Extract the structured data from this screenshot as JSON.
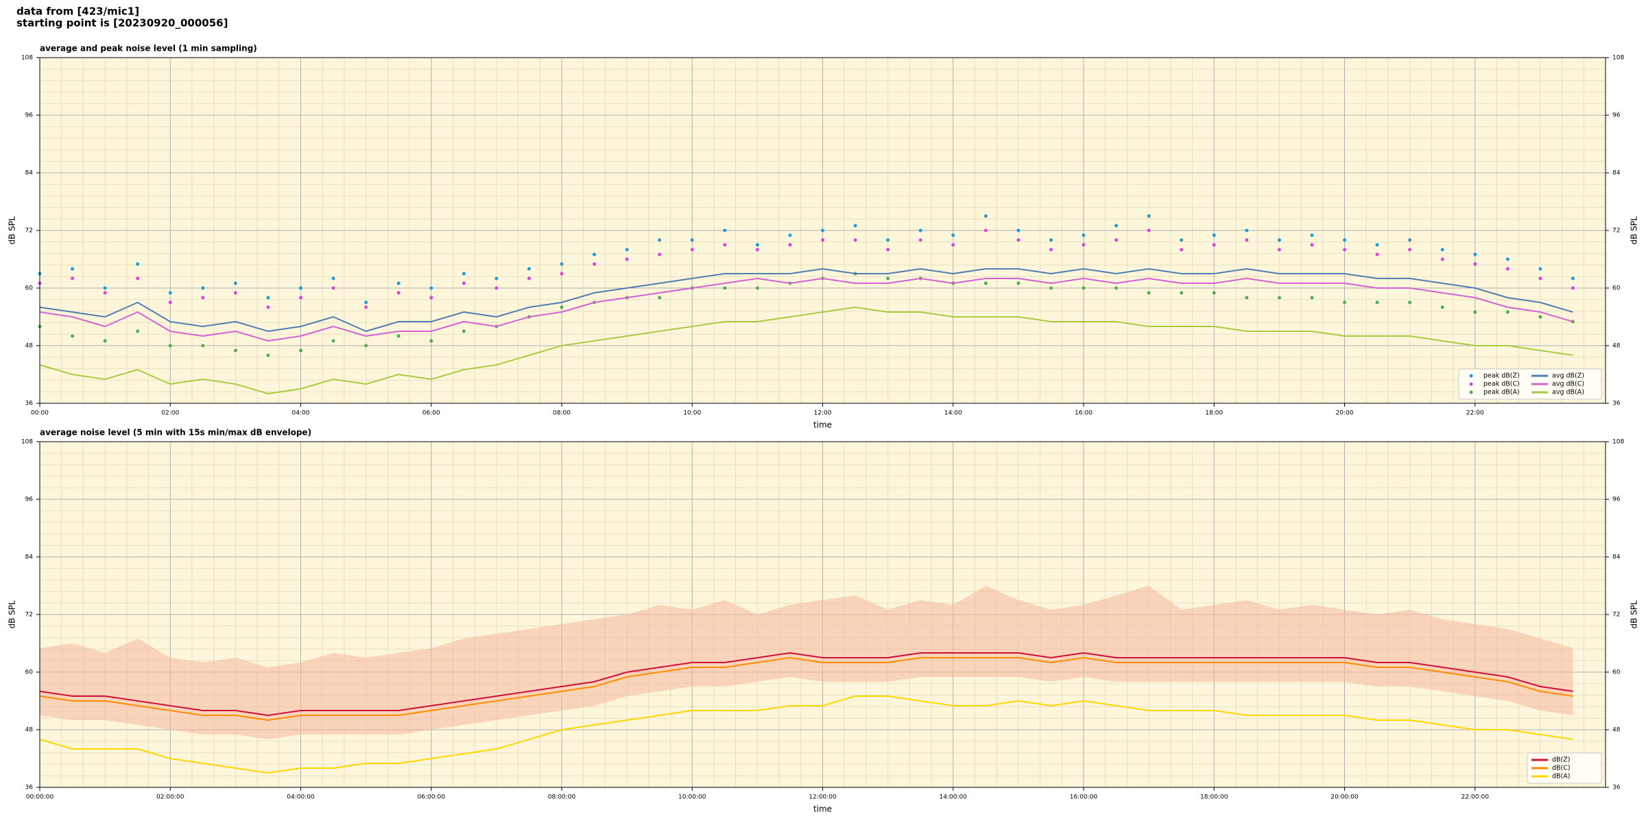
{
  "header": [
    "data from [423/mic1]",
    "starting point is [20230920_000056]"
  ],
  "chart_data": [
    {
      "type": "line",
      "title": "average and peak noise level (1 min sampling)",
      "xlabel": "time",
      "ylabel": "dB SPL",
      "xlim": [
        0,
        24
      ],
      "ylim": [
        36,
        108
      ],
      "xticks": [
        {
          "value": 0,
          "label": "00:00"
        },
        {
          "value": 2,
          "label": "02:00"
        },
        {
          "value": 4,
          "label": "04:00"
        },
        {
          "value": 6,
          "label": "06:00"
        },
        {
          "value": 8,
          "label": "08:00"
        },
        {
          "value": 10,
          "label": "10:00"
        },
        {
          "value": 12,
          "label": "12:00"
        },
        {
          "value": 14,
          "label": "14:00"
        },
        {
          "value": 16,
          "label": "16:00"
        },
        {
          "value": 18,
          "label": "18:00"
        },
        {
          "value": 20,
          "label": "20:00"
        },
        {
          "value": 22,
          "label": "22:00"
        }
      ],
      "yticks": [
        36,
        48,
        60,
        72,
        84,
        96,
        108
      ],
      "grid": true,
      "minor_grid": true,
      "background": "#fdf6da",
      "legend": "lower right",
      "legend_columns": 2,
      "x": [
        0,
        0.5,
        1,
        1.5,
        2,
        2.5,
        3,
        3.5,
        4,
        4.5,
        5,
        5.5,
        6,
        6.5,
        7,
        7.5,
        8,
        8.5,
        9,
        9.5,
        10,
        10.5,
        11,
        11.5,
        12,
        12.5,
        13,
        13.5,
        14,
        14.5,
        15,
        15.5,
        16,
        16.5,
        17,
        17.5,
        18,
        18.5,
        19,
        19.5,
        20,
        20.5,
        21,
        21.5,
        22,
        22.5,
        23,
        23.5
      ],
      "series": [
        {
          "name": "peak dB(Z)",
          "mode": "markers",
          "color": "#1f9bd8",
          "values": [
            63,
            64,
            60,
            65,
            59,
            60,
            61,
            58,
            60,
            62,
            57,
            61,
            60,
            63,
            62,
            64,
            65,
            67,
            68,
            70,
            70,
            72,
            69,
            71,
            72,
            73,
            70,
            72,
            71,
            75,
            72,
            70,
            71,
            73,
            75,
            70,
            71,
            72,
            70,
            71,
            70,
            69,
            70,
            68,
            67,
            66,
            64,
            62
          ]
        },
        {
          "name": "peak dB(C)",
          "mode": "markers",
          "color": "#e040e0",
          "values": [
            61,
            62,
            59,
            62,
            57,
            58,
            59,
            56,
            58,
            60,
            56,
            59,
            58,
            61,
            60,
            62,
            63,
            65,
            66,
            67,
            68,
            69,
            68,
            69,
            70,
            70,
            68,
            70,
            69,
            72,
            70,
            68,
            69,
            70,
            72,
            68,
            69,
            70,
            68,
            69,
            68,
            67,
            68,
            66,
            65,
            64,
            62,
            60
          ]
        },
        {
          "name": "peak dB(A)",
          "mode": "markers",
          "color": "#4caf50",
          "values": [
            52,
            50,
            49,
            51,
            48,
            48,
            47,
            46,
            47,
            49,
            48,
            50,
            49,
            51,
            52,
            54,
            56,
            57,
            58,
            58,
            60,
            60,
            60,
            61,
            62,
            63,
            62,
            62,
            61,
            61,
            61,
            60,
            60,
            60,
            59,
            59,
            59,
            58,
            58,
            58,
            57,
            57,
            57,
            56,
            55,
            55,
            54,
            53
          ]
        },
        {
          "name": "avg dB(Z)",
          "mode": "lines",
          "color": "#4f7fb0",
          "values": [
            56,
            55,
            54,
            57,
            53,
            52,
            53,
            51,
            52,
            54,
            51,
            53,
            53,
            55,
            54,
            56,
            57,
            59,
            60,
            61,
            62,
            63,
            63,
            63,
            64,
            63,
            63,
            64,
            63,
            64,
            64,
            63,
            64,
            63,
            64,
            63,
            63,
            64,
            63,
            63,
            63,
            62,
            62,
            61,
            60,
            58,
            57,
            55
          ]
        },
        {
          "name": "avg dB(C)",
          "mode": "lines",
          "color": "#d462d4",
          "values": [
            55,
            54,
            52,
            55,
            51,
            50,
            51,
            49,
            50,
            52,
            50,
            51,
            51,
            53,
            52,
            54,
            55,
            57,
            58,
            59,
            60,
            61,
            62,
            61,
            62,
            61,
            61,
            62,
            61,
            62,
            62,
            61,
            62,
            61,
            62,
            61,
            61,
            62,
            61,
            61,
            61,
            60,
            60,
            59,
            58,
            56,
            55,
            53
          ]
        },
        {
          "name": "avg dB(A)",
          "mode": "lines",
          "color": "#a8cc44",
          "values": [
            44,
            42,
            41,
            43,
            40,
            41,
            40,
            38,
            39,
            41,
            40,
            42,
            41,
            43,
            44,
            46,
            48,
            49,
            50,
            51,
            52,
            53,
            53,
            54,
            55,
            56,
            55,
            55,
            54,
            54,
            54,
            53,
            53,
            53,
            52,
            52,
            52,
            51,
            51,
            51,
            50,
            50,
            50,
            49,
            48,
            48,
            47,
            46
          ]
        }
      ]
    },
    {
      "type": "line",
      "title": "average noise level (5 min with 15s min/max dB envelope)",
      "xlabel": "time",
      "ylabel": "dB SPL",
      "xlim": [
        0,
        24
      ],
      "ylim": [
        36,
        108
      ],
      "xticks": [
        {
          "value": 0,
          "label": "00:00:00"
        },
        {
          "value": 2,
          "label": "02:00:00"
        },
        {
          "value": 4,
          "label": "04:00:00"
        },
        {
          "value": 6,
          "label": "06:00:00"
        },
        {
          "value": 8,
          "label": "08:00:00"
        },
        {
          "value": 10,
          "label": "10:00:00"
        },
        {
          "value": 12,
          "label": "12:00:00"
        },
        {
          "value": 14,
          "label": "14:00:00"
        },
        {
          "value": 16,
          "label": "16:00:00"
        },
        {
          "value": 18,
          "label": "18:00:00"
        },
        {
          "value": 20,
          "label": "20:00:00"
        },
        {
          "value": 22,
          "label": "22:00:00"
        }
      ],
      "yticks": [
        36,
        48,
        60,
        72,
        84,
        96,
        108
      ],
      "grid": true,
      "minor_grid": true,
      "background": "#fdf6da",
      "legend": "lower right",
      "legend_columns": 1,
      "x": [
        0,
        0.5,
        1,
        1.5,
        2,
        2.5,
        3,
        3.5,
        4,
        4.5,
        5,
        5.5,
        6,
        6.5,
        7,
        7.5,
        8,
        8.5,
        9,
        9.5,
        10,
        10.5,
        11,
        11.5,
        12,
        12.5,
        13,
        13.5,
        14,
        14.5,
        15,
        15.5,
        16,
        16.5,
        17,
        17.5,
        18,
        18.5,
        19,
        19.5,
        20,
        20.5,
        21,
        21.5,
        22,
        22.5,
        23,
        23.5
      ],
      "band": {
        "color": "#f5b8a0",
        "lower": [
          51,
          50,
          50,
          49,
          48,
          47,
          47,
          46,
          47,
          47,
          47,
          47,
          48,
          49,
          50,
          51,
          52,
          53,
          55,
          56,
          57,
          57,
          58,
          59,
          58,
          58,
          58,
          59,
          59,
          59,
          59,
          58,
          59,
          58,
          58,
          58,
          58,
          58,
          58,
          58,
          58,
          57,
          57,
          56,
          55,
          54,
          52,
          51
        ],
        "upper": [
          65,
          66,
          64,
          67,
          63,
          62,
          63,
          61,
          62,
          64,
          63,
          64,
          65,
          67,
          68,
          69,
          70,
          71,
          72,
          74,
          73,
          75,
          72,
          74,
          75,
          76,
          73,
          75,
          74,
          78,
          75,
          73,
          74,
          76,
          78,
          73,
          74,
          75,
          73,
          74,
          73,
          72,
          73,
          71,
          70,
          69,
          67,
          65
        ]
      },
      "series": [
        {
          "name": "dB(Z)",
          "mode": "lines",
          "color": "#d0103a",
          "values": [
            56,
            55,
            55,
            54,
            53,
            52,
            52,
            51,
            52,
            52,
            52,
            52,
            53,
            54,
            55,
            56,
            57,
            58,
            60,
            61,
            62,
            62,
            63,
            64,
            63,
            63,
            63,
            64,
            64,
            64,
            64,
            63,
            64,
            63,
            63,
            63,
            63,
            63,
            63,
            63,
            63,
            62,
            62,
            61,
            60,
            59,
            57,
            56
          ]
        },
        {
          "name": "dB(C)",
          "mode": "lines",
          "color": "#ff8c00",
          "values": [
            55,
            54,
            54,
            53,
            52,
            51,
            51,
            50,
            51,
            51,
            51,
            51,
            52,
            53,
            54,
            55,
            56,
            57,
            59,
            60,
            61,
            61,
            62,
            63,
            62,
            62,
            62,
            63,
            63,
            63,
            63,
            62,
            63,
            62,
            62,
            62,
            62,
            62,
            62,
            62,
            62,
            61,
            61,
            60,
            59,
            58,
            56,
            55
          ]
        },
        {
          "name": "dB(A)",
          "mode": "lines",
          "color": "#ffd700",
          "values": [
            46,
            44,
            44,
            44,
            42,
            41,
            40,
            39,
            40,
            40,
            41,
            41,
            42,
            43,
            44,
            46,
            48,
            49,
            50,
            51,
            52,
            52,
            52,
            53,
            53,
            55,
            55,
            54,
            53,
            53,
            54,
            53,
            54,
            53,
            52,
            52,
            52,
            51,
            51,
            51,
            51,
            50,
            50,
            49,
            48,
            48,
            47,
            46
          ]
        }
      ]
    }
  ]
}
